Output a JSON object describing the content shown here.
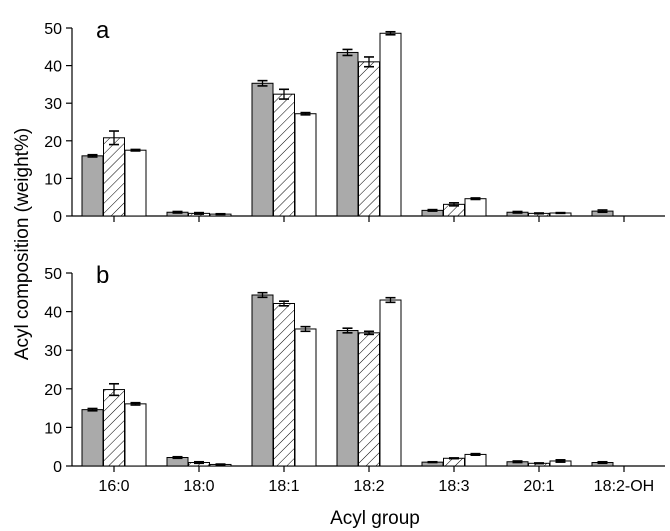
{
  "chart_data": [
    {
      "type": "bar",
      "panel_label": "a",
      "categories": [
        "16:0",
        "18:0",
        "18:1",
        "18:2",
        "18:3",
        "20:1",
        "18:2-OH"
      ],
      "series": [
        {
          "fill": "gray",
          "values": [
            16.0,
            1.0,
            35.3,
            43.5,
            1.5,
            1.0,
            1.3
          ],
          "errors": [
            0.3,
            0.2,
            0.7,
            0.8,
            0.2,
            0.2,
            0.3
          ]
        },
        {
          "fill": "hatched",
          "values": [
            20.8,
            0.7,
            32.4,
            41.0,
            3.1,
            0.7,
            null
          ],
          "errors": [
            1.8,
            0.2,
            1.3,
            1.3,
            0.4,
            0.1,
            null
          ]
        },
        {
          "fill": "white",
          "values": [
            17.5,
            0.5,
            27.2,
            48.6,
            4.6,
            0.8,
            null
          ],
          "errors": [
            0.2,
            0.1,
            0.3,
            0.4,
            0.2,
            0.1,
            null
          ]
        }
      ],
      "ylim": [
        0,
        50
      ],
      "yticks": [
        "0",
        "10",
        "20",
        "30",
        "40",
        "50"
      ]
    },
    {
      "type": "bar",
      "panel_label": "b",
      "categories": [
        "16:0",
        "18:0",
        "18:1",
        "18:2",
        "18:3",
        "20:1",
        "18:2-OH"
      ],
      "series": [
        {
          "fill": "gray",
          "values": [
            14.6,
            2.2,
            44.3,
            35.1,
            1.0,
            1.1,
            0.9
          ],
          "errors": [
            0.3,
            0.2,
            0.6,
            0.6,
            0.1,
            0.2,
            0.2
          ]
        },
        {
          "fill": "hatched",
          "values": [
            19.8,
            0.9,
            42.1,
            34.5,
            2.0,
            0.7,
            null
          ],
          "errors": [
            1.5,
            0.2,
            0.6,
            0.4,
            0.1,
            0.1,
            null
          ]
        },
        {
          "fill": "white",
          "values": [
            16.1,
            0.4,
            35.5,
            43.0,
            3.0,
            1.3,
            null
          ],
          "errors": [
            0.3,
            0.1,
            0.6,
            0.6,
            0.2,
            0.3,
            null
          ]
        }
      ],
      "ylim": [
        0,
        50
      ],
      "yticks": [
        "0",
        "10",
        "20",
        "30",
        "40",
        "50"
      ]
    }
  ],
  "xlabel": "Acyl group",
  "ylabel": "Acyl composition (weight%)",
  "colors": {
    "gray": "#aaaaaa",
    "hatched": "#ffffff",
    "white": "#ffffff",
    "stroke": "#000000"
  }
}
